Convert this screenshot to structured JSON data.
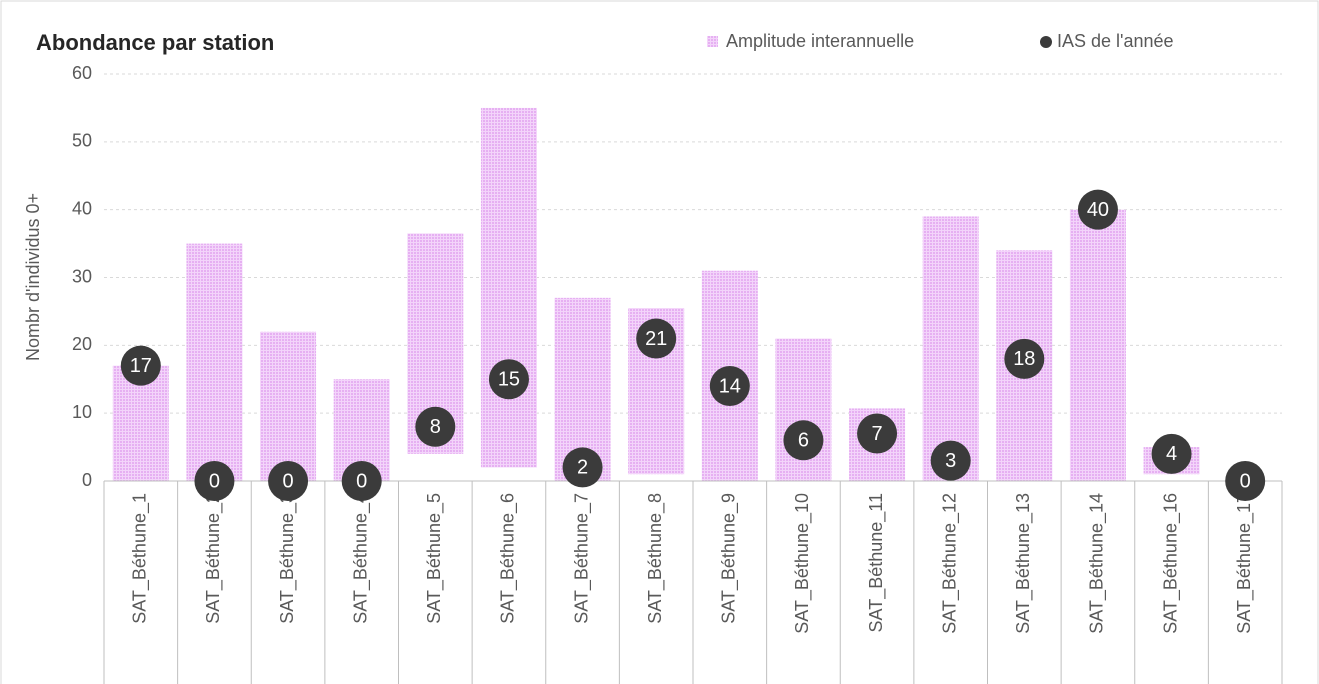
{
  "chart_data": {
    "type": "floating-bar-dot",
    "title": "Abondance par station",
    "y_label": "Nombr d'individus 0+",
    "categories": [
      "SAT_Béthune_1",
      "SAT_Béthune_2",
      "SAT_Béthune_3",
      "SAT_Béthune_4",
      "SAT_Béthune_5",
      "SAT_Béthune_6",
      "SAT_Béthune_7",
      "SAT_Béthune_8",
      "SAT_Béthune_9",
      "SAT_Béthune_10",
      "SAT_Béthune_11",
      "SAT_Béthune_12",
      "SAT_Béthune_13",
      "SAT_Béthune_14",
      "SAT_Béthune_16",
      "SAT_Béthune_17"
    ],
    "series": [
      {
        "name": "Amplitude interannuelle",
        "color": "#e6b0f2",
        "low": [
          0,
          0,
          0,
          0,
          4,
          2,
          0,
          1,
          0,
          0,
          0,
          0,
          0,
          0,
          1,
          null
        ],
        "high": [
          17,
          35,
          22,
          15,
          36.5,
          55,
          27,
          25.5,
          31,
          21,
          10.7,
          39,
          34,
          40,
          5,
          null
        ]
      },
      {
        "name": "IAS de l'année",
        "color": "#3b3b3b",
        "values": [
          17,
          0,
          0,
          0,
          8,
          15,
          2,
          21,
          14,
          6,
          7,
          3,
          18,
          40,
          4,
          0
        ]
      }
    ],
    "ylim": [
      0,
      60
    ],
    "yticks": [
      0,
      10,
      20,
      30,
      40,
      50,
      60
    ],
    "grid": true,
    "legend": "top-right"
  }
}
